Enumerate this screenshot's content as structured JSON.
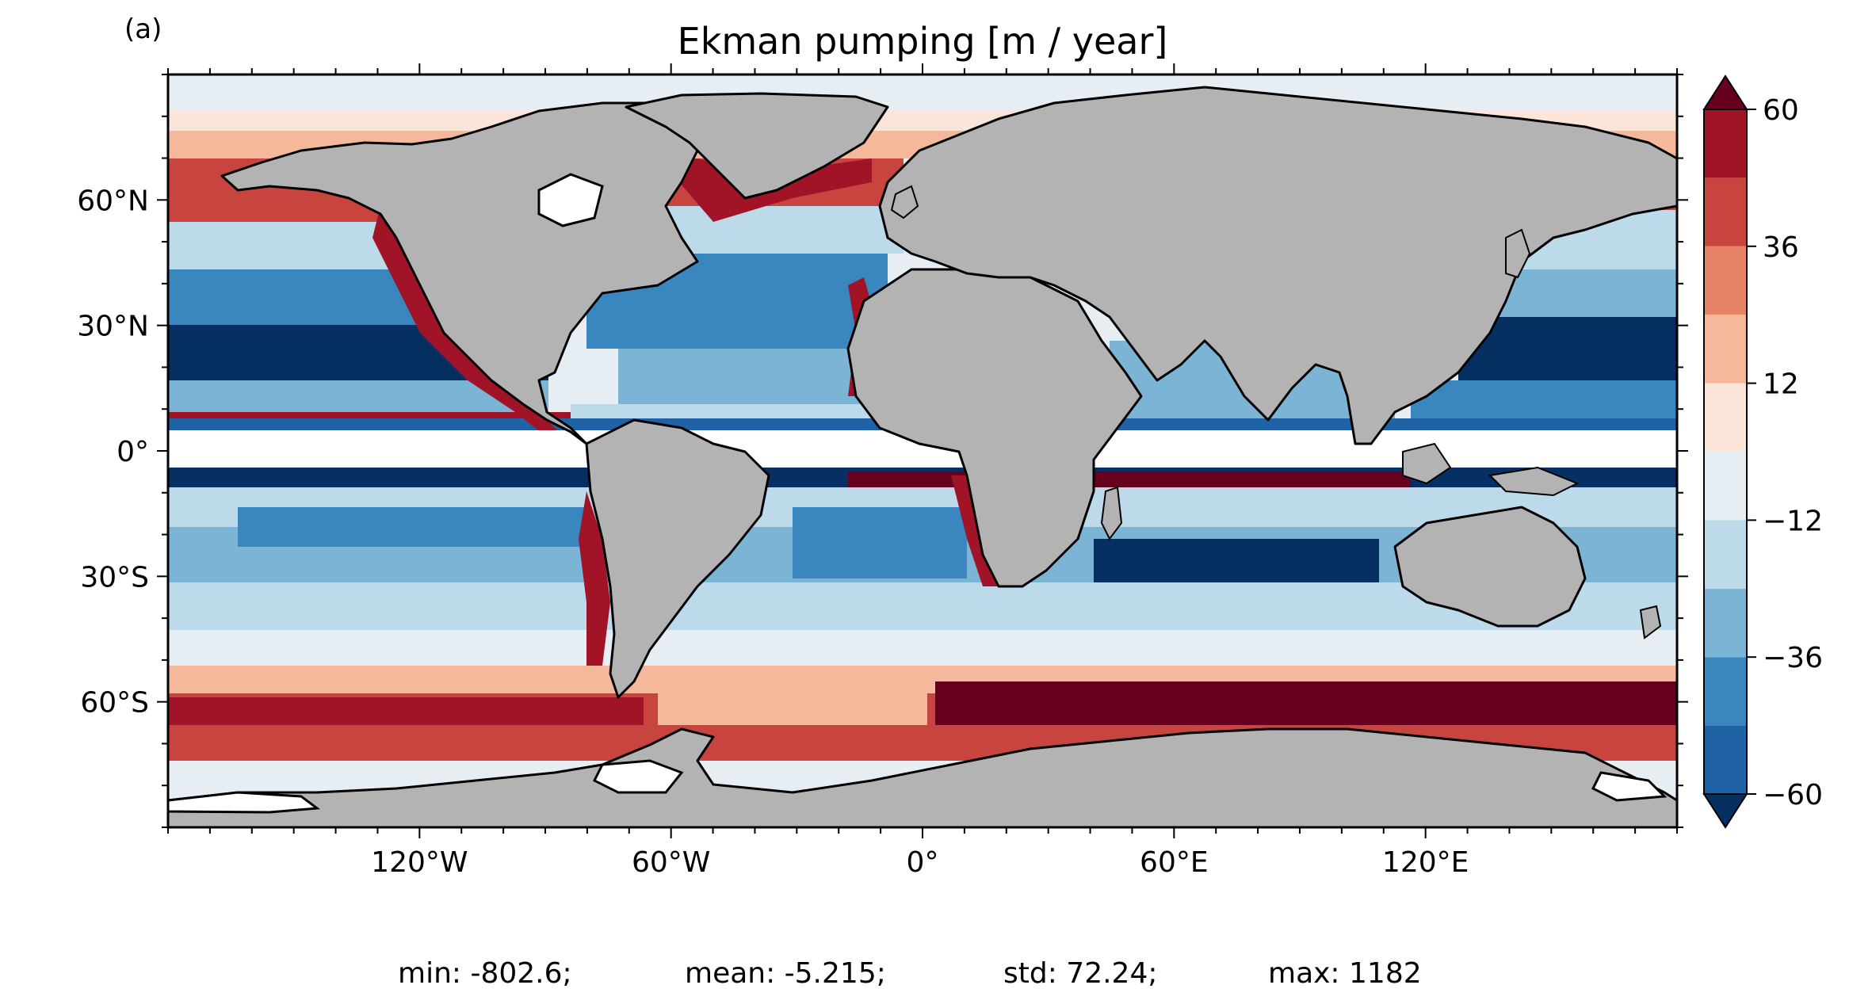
{
  "panel_label": "(a)",
  "title": "Ekman pumping [m / year]",
  "axes": {
    "x_ticks": [
      {
        "lon": -120,
        "label": "120°W"
      },
      {
        "lon": -60,
        "label": "60°W"
      },
      {
        "lon": 0,
        "label": "0°"
      },
      {
        "lon": 60,
        "label": "60°E"
      },
      {
        "lon": 120,
        "label": "120°E"
      }
    ],
    "y_ticks": [
      {
        "lat": 60,
        "label": "60°N"
      },
      {
        "lat": 30,
        "label": "30°N"
      },
      {
        "lat": 0,
        "label": "0°"
      },
      {
        "lat": -30,
        "label": "30°S"
      },
      {
        "lat": -60,
        "label": "60°S"
      }
    ],
    "lon_range": [
      -180,
      180
    ],
    "lat_range": [
      -90,
      90
    ]
  },
  "colorbar": {
    "levels": [
      -60,
      -48,
      -36,
      -24,
      -12,
      0,
      12,
      24,
      36,
      48,
      60
    ],
    "tick_labels": [
      {
        "value": 60,
        "label": "60"
      },
      {
        "value": 36,
        "label": "36"
      },
      {
        "value": 12,
        "label": "12"
      },
      {
        "value": -12,
        "label": "−12"
      },
      {
        "value": -36,
        "label": "−36"
      },
      {
        "value": -60,
        "label": "−60"
      }
    ],
    "colors": [
      "#053061",
      "#1f63a6",
      "#3a87c0",
      "#7cb4d6",
      "#bddaea",
      "#e6eef4",
      "#fbe4d8",
      "#f6b89b",
      "#e58466",
      "#c8443f",
      "#a11428",
      "#67001f"
    ],
    "extend": "both"
  },
  "colors": {
    "land": "#b3b3b3",
    "ice": "#ffffff",
    "coast": "#000000"
  },
  "stats": {
    "min": "min: -802.6;",
    "mean": "mean: -5.215;",
    "std": "std: 72.24;",
    "max": "max: 1182"
  }
}
